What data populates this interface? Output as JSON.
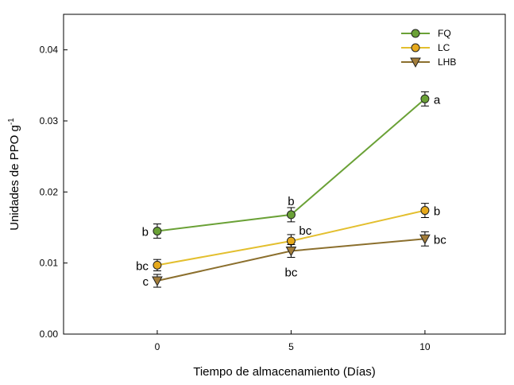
{
  "chart_data": {
    "type": "line",
    "xlabel": "Tiempo de almacenamiento (Días)",
    "ylabel_main": "Unidades de PPO g",
    "ylabel_sup": "-1",
    "xlim": [
      -3.5,
      13
    ],
    "ylim": [
      0.0,
      0.045
    ],
    "x_ticks": [
      0,
      5,
      10
    ],
    "x_tick_labels": [
      "0",
      "5",
      "10"
    ],
    "y_ticks": [
      0.0,
      0.01,
      0.02,
      0.03,
      0.04
    ],
    "y_tick_labels": [
      "0.00",
      "0.01",
      "0.02",
      "0.03",
      "0.04"
    ],
    "grid": false,
    "legend_position": "top-right",
    "series": [
      {
        "name": "FQ",
        "marker": "circle",
        "line_color": "#6aa136",
        "marker_fill": "#6aa136",
        "x": [
          0,
          5,
          10
        ],
        "y": [
          0.0145,
          0.0168,
          0.0331
        ],
        "err": [
          0.001,
          0.001,
          0.001
        ],
        "labels": [
          "b",
          "b",
          "a"
        ],
        "label_pos": [
          "left",
          "top",
          "right"
        ]
      },
      {
        "name": "LC",
        "marker": "circle",
        "line_color": "#e3bf2e",
        "marker_fill": "#e6a91c",
        "x": [
          0,
          5,
          10
        ],
        "y": [
          0.0097,
          0.0131,
          0.0174
        ],
        "err": [
          0.0008,
          0.0009,
          0.001
        ],
        "labels": [
          "bc",
          "bc",
          "b"
        ],
        "label_pos": [
          "left",
          "upper-right",
          "right"
        ]
      },
      {
        "name": "LHB",
        "marker": "triangle-down",
        "line_color": "#8b6f2d",
        "marker_fill": "#a37d3a",
        "x": [
          0,
          5,
          10
        ],
        "y": [
          0.0075,
          0.0117,
          0.0134
        ],
        "err": [
          0.0009,
          0.0009,
          0.001
        ],
        "labels": [
          "c",
          "bc",
          "bc"
        ],
        "label_pos": [
          "left",
          "below",
          "right"
        ]
      }
    ]
  }
}
